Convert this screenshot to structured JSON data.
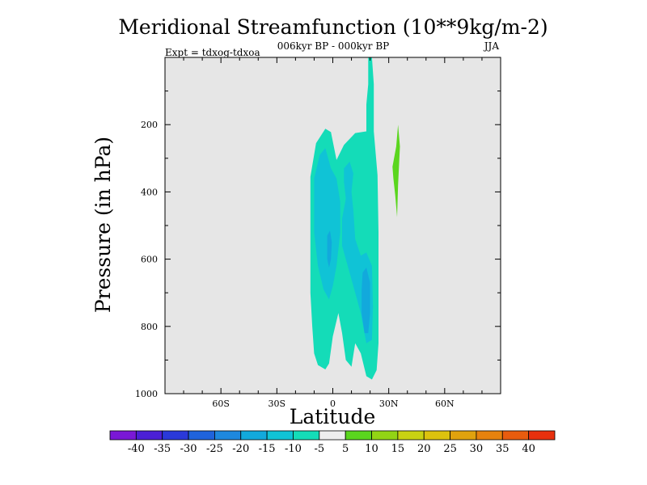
{
  "chart_data": {
    "type": "contour",
    "title": "Meridional Streamfunction (10**9kg/m-2)",
    "subtitle_center": "006kyr BP - 000kyr BP",
    "subtitle_left": "Expt = tdxog-tdxoa",
    "subtitle_right": "JJA",
    "xlabel": "Latitude",
    "ylabel": "Pressure (in hPa)",
    "xlim": [
      -90,
      90
    ],
    "ylim": [
      0,
      1000
    ],
    "y_reversed": true,
    "x_ticks": [
      {
        "value": -60,
        "label": "60S"
      },
      {
        "value": -30,
        "label": "30S"
      },
      {
        "value": 0,
        "label": "0"
      },
      {
        "value": 30,
        "label": "30N"
      },
      {
        "value": 60,
        "label": "60N"
      }
    ],
    "y_ticks": [
      {
        "value": 200,
        "label": "200"
      },
      {
        "value": 400,
        "label": "400"
      },
      {
        "value": 600,
        "label": "600"
      },
      {
        "value": 800,
        "label": "800"
      },
      {
        "value": 1000,
        "label": "1000"
      }
    ],
    "background_color": "#e6e6e6",
    "colorbar": {
      "levels": [
        -40,
        -35,
        -30,
        -25,
        -20,
        -15,
        -10,
        -5,
        5,
        10,
        15,
        20,
        25,
        30,
        35,
        40
      ],
      "labels": [
        "-40",
        "-35",
        "-30",
        "-25",
        "-20",
        "-15",
        "-10",
        "-5",
        "5",
        "10",
        "15",
        "20",
        "25",
        "30",
        "35",
        "40"
      ],
      "colors": [
        "#7a18d6",
        "#4b1fd6",
        "#2a39d9",
        "#1f63dc",
        "#1e88de",
        "#12a9dc",
        "#10c3d6",
        "#14dcb8",
        "#eeeeee",
        "#5ad61e",
        "#92d414",
        "#c8d212",
        "#dcc20e",
        "#e0a20e",
        "#e6820e",
        "#e85c0e",
        "#e8300e"
      ]
    },
    "regions": [
      {
        "name": "band-minus5-to-minus10-main",
        "band": "-10 to -5",
        "color": "#14dcb8",
        "points": [
          [
            -12,
            355
          ],
          [
            -9,
            255
          ],
          [
            -4,
            212
          ],
          [
            -1,
            222
          ],
          [
            2,
            305
          ],
          [
            6,
            260
          ],
          [
            12,
            225
          ],
          [
            18,
            220
          ],
          [
            18,
            140
          ],
          [
            19,
            80
          ],
          [
            19,
            0
          ],
          [
            21,
            0
          ],
          [
            22,
            80
          ],
          [
            22,
            220
          ],
          [
            24,
            350
          ],
          [
            24.5,
            520
          ],
          [
            24.5,
            650
          ],
          [
            24.5,
            850
          ],
          [
            23.5,
            930
          ],
          [
            21,
            958
          ],
          [
            18,
            948
          ],
          [
            15,
            880
          ],
          [
            12,
            850
          ],
          [
            10,
            920
          ],
          [
            7,
            900
          ],
          [
            5,
            820
          ],
          [
            3,
            760
          ],
          [
            0,
            830
          ],
          [
            -2,
            910
          ],
          [
            -4,
            928
          ],
          [
            -8,
            915
          ],
          [
            -10,
            880
          ],
          [
            -11,
            800
          ],
          [
            -12,
            700
          ],
          [
            -12,
            520
          ]
        ]
      },
      {
        "name": "band-minus10-to-minus15-west",
        "band": "-15 to -10",
        "color": "#10c3d6",
        "points": [
          [
            -10,
            360
          ],
          [
            -7,
            290
          ],
          [
            -4,
            270
          ],
          [
            -1,
            330
          ],
          [
            2,
            360
          ],
          [
            4,
            430
          ],
          [
            4,
            520
          ],
          [
            2,
            620
          ],
          [
            0,
            680
          ],
          [
            -2,
            720
          ],
          [
            -5,
            690
          ],
          [
            -8,
            620
          ],
          [
            -10,
            520
          ]
        ]
      },
      {
        "name": "band-minus10-to-minus15-center",
        "band": "-15 to -10",
        "color": "#10c3d6",
        "points": [
          [
            6,
            330
          ],
          [
            9,
            310
          ],
          [
            11,
            345
          ],
          [
            10,
            400
          ],
          [
            11,
            455
          ],
          [
            12,
            540
          ],
          [
            15,
            590
          ],
          [
            18,
            580
          ],
          [
            21,
            620
          ],
          [
            21.5,
            740
          ],
          [
            21,
            840
          ],
          [
            18,
            850
          ],
          [
            15,
            760
          ],
          [
            12,
            700
          ],
          [
            9,
            640
          ],
          [
            7,
            600
          ],
          [
            5,
            560
          ],
          [
            5,
            480
          ],
          [
            7,
            420
          ],
          [
            6,
            370
          ]
        ]
      },
      {
        "name": "band-minus15-to-minus20-center",
        "band": "-20 to -15",
        "color": "#12a9dc",
        "points": [
          [
            16,
            640
          ],
          [
            18,
            625
          ],
          [
            20,
            670
          ],
          [
            20,
            760
          ],
          [
            19,
            820
          ],
          [
            17,
            820
          ],
          [
            15.5,
            760
          ],
          [
            15.5,
            690
          ]
        ]
      },
      {
        "name": "band-minus15-to-minus20-west",
        "band": "-20 to -15",
        "color": "#12a9dc",
        "points": [
          [
            -3,
            530
          ],
          [
            -1.5,
            515
          ],
          [
            -0.5,
            550
          ],
          [
            -1,
            600
          ],
          [
            -2,
            625
          ],
          [
            -3,
            600
          ]
        ]
      },
      {
        "name": "band-5-to-10-north",
        "band": "5 to 10",
        "color": "#5ad61e",
        "points": [
          [
            32,
            325
          ],
          [
            34,
            265
          ],
          [
            35,
            200
          ],
          [
            36,
            265
          ],
          [
            35,
            380
          ],
          [
            34.5,
            475
          ],
          [
            33.5,
            410
          ],
          [
            32.5,
            360
          ]
        ]
      }
    ]
  }
}
